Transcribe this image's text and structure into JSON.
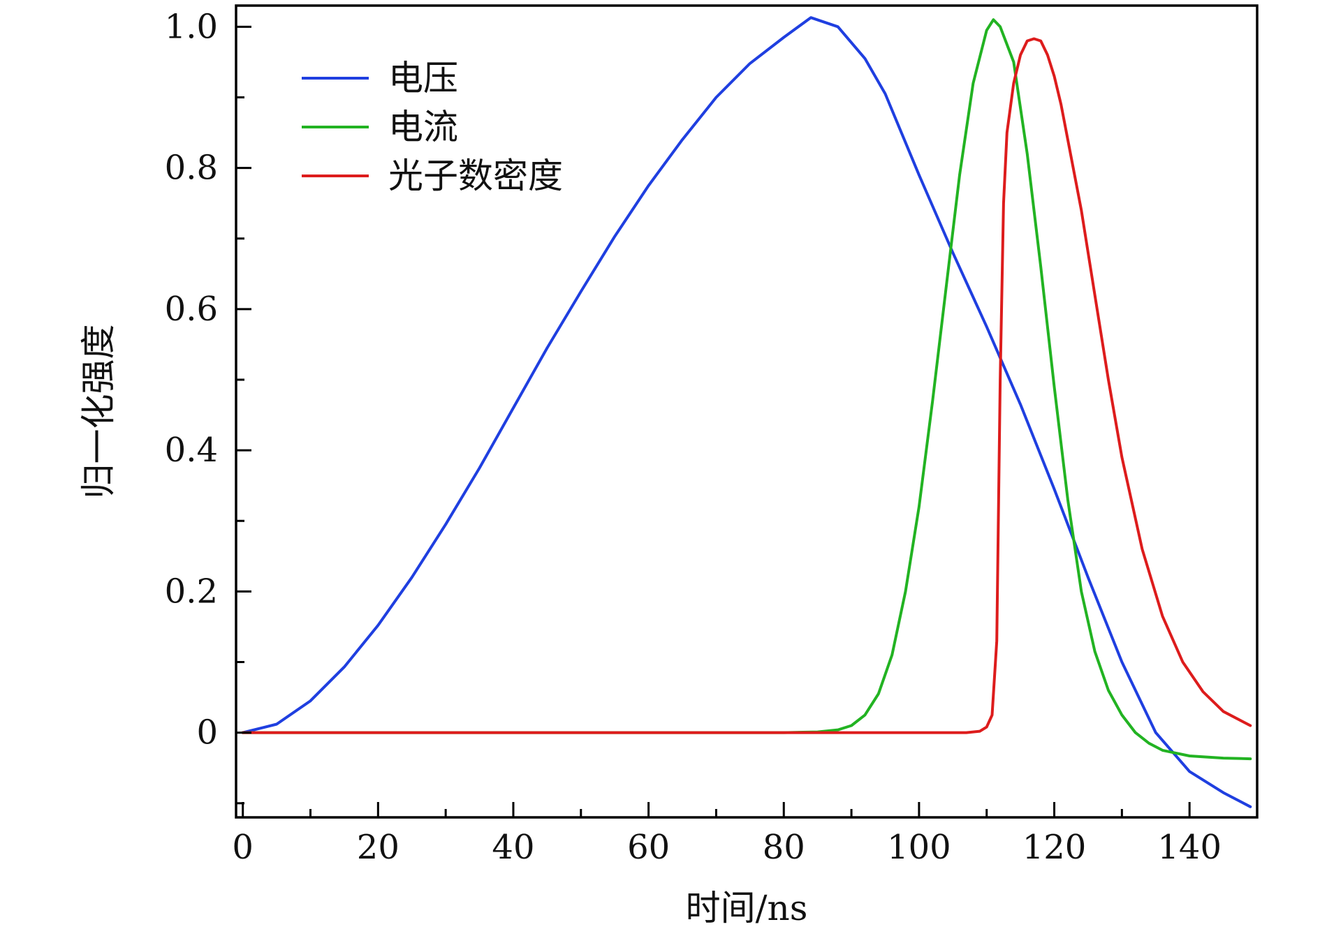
{
  "chart_data": {
    "type": "line",
    "title": "",
    "xlabel": "时间/ns",
    "ylabel": "归一化强度",
    "xlim": [
      -1,
      150
    ],
    "ylim": [
      -0.12,
      1.03
    ],
    "x_ticks": [
      0,
      20,
      40,
      60,
      80,
      100,
      120,
      140
    ],
    "x_tick_labels": [
      "0",
      "20",
      "40",
      "60",
      "80",
      "100",
      "120",
      "140"
    ],
    "x_minor_ticks": [
      10,
      30,
      50,
      70,
      90,
      110,
      130
    ],
    "y_ticks": [
      0,
      0.2,
      0.4,
      0.6,
      0.8,
      1.0
    ],
    "y_tick_labels": [
      "0",
      "0.2",
      "0.4",
      "0.6",
      "0.8",
      "1.0"
    ],
    "y_minor_ticks": [
      -0.1,
      0.1,
      0.3,
      0.5,
      0.7,
      0.9
    ],
    "grid": false,
    "legend_position": "top-left",
    "series": [
      {
        "name": "电压",
        "color": "#1f3fe0",
        "x": [
          0,
          5,
          10,
          15,
          20,
          25,
          30,
          35,
          40,
          45,
          50,
          55,
          60,
          65,
          70,
          75,
          80,
          84,
          88,
          92,
          95,
          100,
          105,
          110,
          115,
          120,
          125,
          130,
          135,
          140,
          145,
          149
        ],
        "y": [
          0,
          0.012,
          0.045,
          0.093,
          0.152,
          0.22,
          0.295,
          0.375,
          0.46,
          0.545,
          0.625,
          0.703,
          0.775,
          0.84,
          0.9,
          0.948,
          0.985,
          1.013,
          1.0,
          0.955,
          0.905,
          0.79,
          0.68,
          0.575,
          0.465,
          0.345,
          0.22,
          0.1,
          0.0,
          -0.055,
          -0.085,
          -0.105
        ]
      },
      {
        "name": "电流",
        "color": "#22b322",
        "x": [
          0,
          20,
          40,
          60,
          80,
          85,
          88,
          90,
          92,
          94,
          96,
          98,
          100,
          102,
          104,
          106,
          108,
          110,
          111,
          112,
          114,
          116,
          118,
          120,
          122,
          124,
          126,
          128,
          130,
          132,
          134,
          136,
          140,
          145,
          149
        ],
        "y": [
          0,
          0,
          0,
          0,
          0,
          0.001,
          0.004,
          0.01,
          0.025,
          0.055,
          0.11,
          0.2,
          0.32,
          0.47,
          0.63,
          0.79,
          0.92,
          0.995,
          1.01,
          1.0,
          0.95,
          0.82,
          0.66,
          0.49,
          0.33,
          0.2,
          0.115,
          0.06,
          0.025,
          0.0,
          -0.015,
          -0.025,
          -0.033,
          -0.036,
          -0.037
        ]
      },
      {
        "name": "光子数密度",
        "color": "#dd1c1c",
        "x": [
          0,
          20,
          40,
          60,
          80,
          100,
          107,
          109,
          110,
          110.8,
          111.5,
          112,
          112.5,
          113,
          114,
          115,
          116,
          117,
          118,
          119,
          120,
          121,
          122,
          124,
          126,
          128,
          130,
          133,
          136,
          139,
          142,
          145,
          149
        ],
        "y": [
          0,
          0,
          0,
          0,
          0,
          0,
          0,
          0.002,
          0.008,
          0.025,
          0.13,
          0.5,
          0.75,
          0.85,
          0.92,
          0.96,
          0.98,
          0.983,
          0.98,
          0.96,
          0.93,
          0.89,
          0.84,
          0.74,
          0.62,
          0.5,
          0.39,
          0.26,
          0.165,
          0.1,
          0.058,
          0.03,
          0.01
        ]
      }
    ]
  }
}
